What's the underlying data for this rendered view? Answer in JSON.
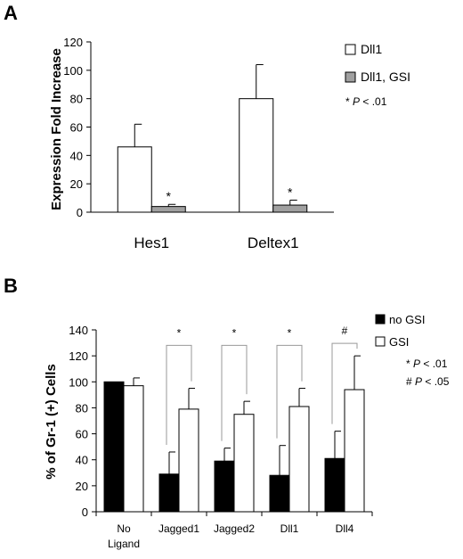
{
  "panel_a": {
    "letter": "A"
  },
  "panel_b": {
    "letter": "B"
  },
  "chart_data": [
    {
      "type": "bar",
      "categories": [
        "Hes1",
        "Deltex1"
      ],
      "series": [
        {
          "name": "Dll1",
          "values": [
            46,
            80
          ],
          "errors": [
            16,
            24
          ],
          "color": "#ffffff"
        },
        {
          "name": "Dll1, GSI",
          "values": [
            4,
            5
          ],
          "errors": [
            1.5,
            3.5
          ],
          "color": "#a0a0a0"
        }
      ],
      "ylabel": "Expression Fold Increase",
      "xlabel": "",
      "ylim": [
        0,
        120
      ],
      "yticks": [
        0,
        20,
        40,
        60,
        80,
        100,
        120
      ],
      "significance": [
        {
          "category": 0,
          "series": 1,
          "mark": "*"
        },
        {
          "category": 1,
          "series": 1,
          "mark": "*"
        }
      ],
      "legend_position": "top-right",
      "legend_note": {
        "mark": "*",
        "italic": "P",
        "rest": " < .01"
      },
      "grid": false
    },
    {
      "type": "bar",
      "categories": [
        [
          "No",
          "Ligand"
        ],
        [
          "Jagged1"
        ],
        [
          "Jagged2"
        ],
        [
          "Dll1"
        ],
        [
          "Dll4"
        ]
      ],
      "series": [
        {
          "name": "no GSI",
          "values": [
            100,
            29,
            39,
            28,
            41
          ],
          "errors": [
            0,
            17,
            10,
            23,
            21
          ],
          "color": "#000000"
        },
        {
          "name": "GSI",
          "values": [
            97,
            79,
            75,
            81,
            94
          ],
          "errors": [
            6,
            16,
            10,
            14,
            26
          ],
          "color": "#ffffff"
        }
      ],
      "ylabel": "% of Gr-1 (+) Cells",
      "xlabel": "",
      "ylim": [
        0,
        140
      ],
      "yticks": [
        0,
        20,
        40,
        60,
        80,
        100,
        120,
        140
      ],
      "comparisons": [
        {
          "category": 1,
          "mark": "*"
        },
        {
          "category": 2,
          "mark": "*"
        },
        {
          "category": 3,
          "mark": "*"
        },
        {
          "category": 4,
          "mark": "#"
        }
      ],
      "legend_position": "top-right",
      "legend_notes": [
        {
          "mark": "*",
          "italic": "P",
          "rest": " < .01"
        },
        {
          "mark": "#",
          "italic": "P",
          "rest": " < .05"
        }
      ],
      "grid": false
    }
  ]
}
